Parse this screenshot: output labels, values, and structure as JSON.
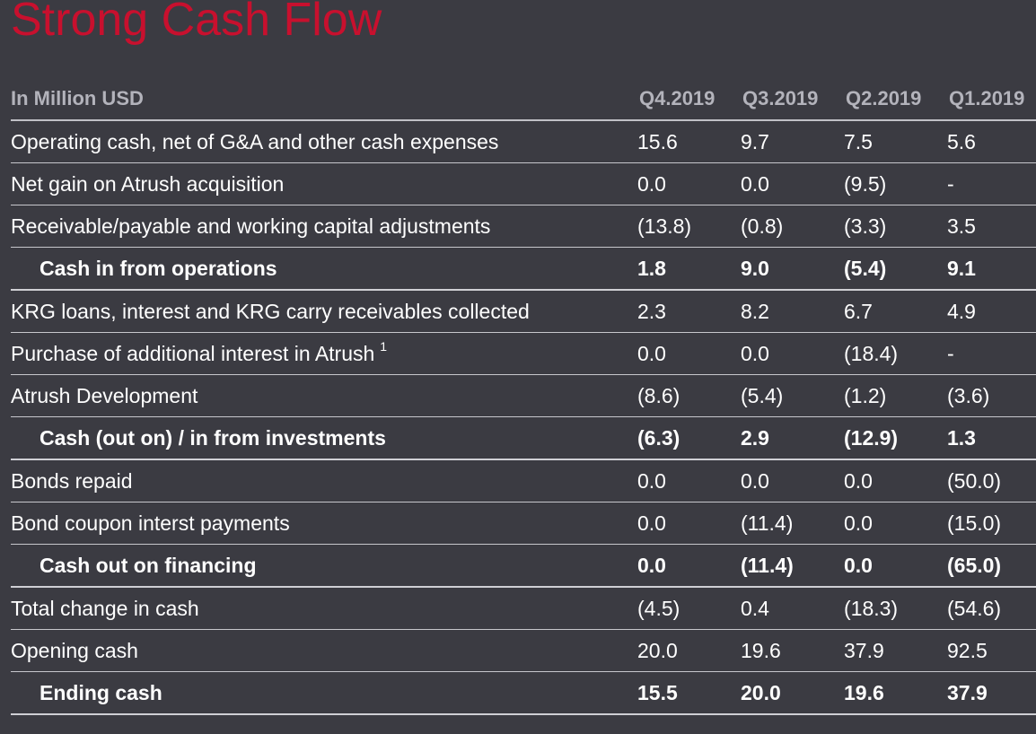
{
  "title": "Strong Cash Flow",
  "table": {
    "unit_label": "In Million USD",
    "columns": [
      "Q4.2019",
      "Q3.2019",
      "Q2.2019",
      "Q1.2019"
    ],
    "rows": [
      {
        "label": "Operating cash, net of G&A and other cash expenses",
        "footnote": "",
        "subtotal": false,
        "values": [
          "15.6",
          "9.7",
          "7.5",
          "5.6"
        ]
      },
      {
        "label": "Net gain on Atrush acquisition",
        "footnote": "",
        "subtotal": false,
        "values": [
          "0.0",
          "0.0",
          "(9.5)",
          "-"
        ]
      },
      {
        "label": "Receivable/payable and working capital adjustments",
        "footnote": "",
        "subtotal": false,
        "values": [
          "(13.8)",
          "(0.8)",
          "(3.3)",
          "3.5"
        ]
      },
      {
        "label": "Cash in from operations",
        "footnote": "",
        "subtotal": true,
        "values": [
          "1.8",
          "9.0",
          "(5.4)",
          "9.1"
        ]
      },
      {
        "label": "KRG loans, interest and KRG carry receivables collected",
        "footnote": "",
        "subtotal": false,
        "values": [
          "2.3",
          "8.2",
          "6.7",
          "4.9"
        ]
      },
      {
        "label": "Purchase of additional interest in Atrush",
        "footnote": "1",
        "subtotal": false,
        "values": [
          "0.0",
          "0.0",
          "(18.4)",
          "-"
        ]
      },
      {
        "label": "Atrush Development",
        "footnote": "",
        "subtotal": false,
        "values": [
          "(8.6)",
          "(5.4)",
          "(1.2)",
          "(3.6)"
        ]
      },
      {
        "label": "Cash (out on) / in from investments",
        "footnote": "",
        "subtotal": true,
        "values": [
          "(6.3)",
          "2.9",
          "(12.9)",
          "1.3"
        ]
      },
      {
        "label": "Bonds repaid",
        "footnote": "",
        "subtotal": false,
        "values": [
          "0.0",
          "0.0",
          "0.0",
          "(50.0)"
        ]
      },
      {
        "label": "Bond coupon interst payments",
        "footnote": "",
        "subtotal": false,
        "values": [
          "0.0",
          "(11.4)",
          "0.0",
          "(15.0)"
        ]
      },
      {
        "label": "Cash out on financing",
        "footnote": "",
        "subtotal": true,
        "values": [
          "0.0",
          "(11.4)",
          "0.0",
          "(65.0)"
        ]
      },
      {
        "label": "Total change in cash",
        "footnote": "",
        "subtotal": false,
        "values": [
          "(4.5)",
          "0.4",
          "(18.3)",
          "(54.6)"
        ]
      },
      {
        "label": "Opening cash",
        "footnote": "",
        "subtotal": false,
        "values": [
          "20.0",
          "19.6",
          "37.9",
          "92.5"
        ]
      },
      {
        "label": "Ending cash",
        "footnote": "",
        "subtotal": true,
        "values": [
          "15.5",
          "20.0",
          "19.6",
          "37.9"
        ]
      }
    ]
  },
  "colors": {
    "background": "#3b3b42",
    "title": "#c8102e",
    "header_text": "#b3b3bb",
    "body_text": "#ffffff",
    "rule": "#c7c7cc"
  }
}
